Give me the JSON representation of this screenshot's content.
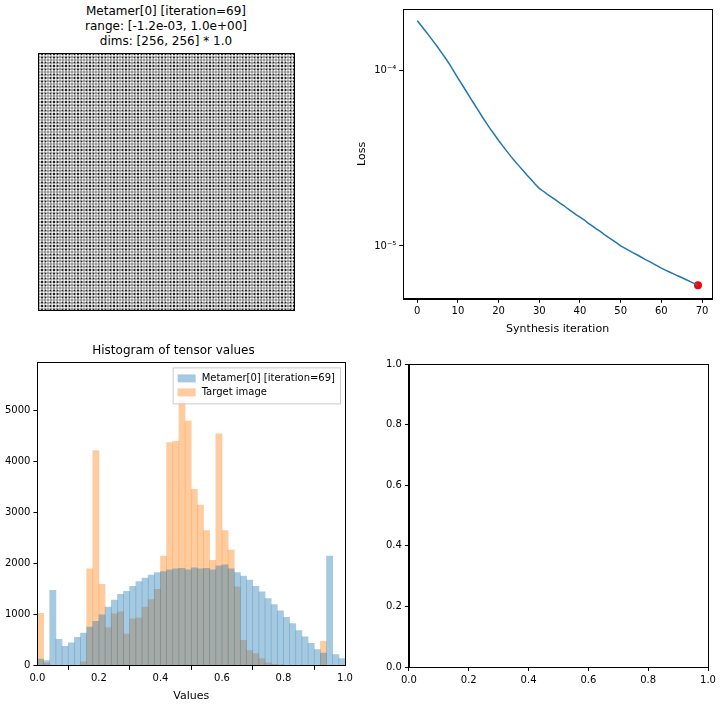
{
  "chart_data": [
    {
      "type": "image",
      "title": [
        "Metamer[0] [iteration=69]",
        "range: [-1.2e-03, 1.0e+00]",
        "dims: [256, 256] * 1.0"
      ],
      "tick_labels": false
    },
    {
      "type": "line",
      "x_label": "Synthesis iteration",
      "y_label": "Loss",
      "log": "y",
      "grid": false,
      "xlim": [
        -3.45,
        72.45
      ],
      "xticks": [
        0,
        10,
        20,
        30,
        40,
        50,
        60,
        70
      ],
      "ylim": [
        5e-06,
        0.000224
      ],
      "yticks": [
        {
          "value": 0.0001,
          "label": "10⁻⁴"
        },
        {
          "value": 1e-05,
          "label": "10⁻⁵"
        }
      ],
      "series": [
        {
          "color": "#1f77b4",
          "line_style": "solid",
          "marker": "none",
          "x": [
            0,
            1,
            2,
            3,
            4,
            5,
            6,
            7,
            8,
            9,
            10,
            11,
            12,
            13,
            14,
            15,
            16,
            17,
            18,
            19,
            20,
            21,
            22,
            23,
            24,
            25,
            26,
            27,
            28,
            29,
            30,
            31,
            32,
            33,
            34,
            35,
            36,
            37,
            38,
            39,
            40,
            41,
            42,
            43,
            44,
            45,
            46,
            47,
            48,
            49,
            50,
            51,
            52,
            53,
            54,
            55,
            56,
            57,
            58,
            59,
            60,
            61,
            62,
            63,
            64,
            65,
            66,
            67,
            68,
            69
          ],
          "values": [
            0.000192,
            0.00018,
            0.000168,
            0.000157,
            0.000146,
            0.000136,
            0.000126,
            0.000117,
            0.000108,
            9.89e-05,
            9.04e-05,
            8.32e-05,
            7.64e-05,
            7.01e-05,
            6.44e-05,
            5.92e-05,
            5.43e-05,
            5.01e-05,
            4.63e-05,
            4.3e-05,
            3.99e-05,
            3.72e-05,
            3.47e-05,
            3.24e-05,
            3.04e-05,
            2.86e-05,
            2.69e-05,
            2.53e-05,
            2.39e-05,
            2.25e-05,
            2.13e-05,
            2.05e-05,
            1.97e-05,
            1.9e-05,
            1.83e-05,
            1.76e-05,
            1.7e-05,
            1.63e-05,
            1.57e-05,
            1.51e-05,
            1.46e-05,
            1.41e-05,
            1.35e-05,
            1.3e-05,
            1.25e-05,
            1.21e-05,
            1.16e-05,
            1.12e-05,
            1.08e-05,
            1.04e-05,
            1e-05,
            9.71e-06,
            9.44e-06,
            9.16e-06,
            8.91e-06,
            8.65e-06,
            8.39e-06,
            8.17e-06,
            7.93e-06,
            7.71e-06,
            7.48e-06,
            7.29e-06,
            7.11e-06,
            6.93e-06,
            6.76e-06,
            6.61e-06,
            6.44e-06,
            6.28e-06,
            6.12e-06,
            5.97e-06
          ]
        },
        {
          "type": "scatter",
          "color": "#ff0000",
          "marker": "circle",
          "x": [
            69
          ],
          "values": [
            5.97e-06
          ]
        }
      ]
    },
    {
      "type": "histogram",
      "title": "Histogram of tensor values",
      "x_label": "Values",
      "grid": false,
      "legend": "upper right",
      "xlim": [
        0,
        1
      ],
      "xticks": [
        {
          "value": 0,
          "label": "0.0"
        },
        0.2,
        0.4,
        0.6,
        0.8,
        {
          "value": 1,
          "label": "1.0"
        }
      ],
      "ylim": [
        0,
        5950
      ],
      "yticks": [
        0,
        1000,
        2000,
        3000,
        4000,
        5000
      ],
      "bins": [
        0,
        0.02,
        0.04,
        0.06,
        0.08,
        0.1,
        0.12,
        0.14,
        0.16,
        0.18,
        0.2,
        0.22,
        0.24,
        0.26,
        0.28,
        0.3,
        0.32,
        0.34,
        0.36,
        0.38,
        0.4,
        0.42,
        0.44,
        0.46,
        0.48,
        0.5,
        0.52,
        0.54,
        0.56,
        0.58,
        0.6,
        0.62,
        0.64,
        0.66,
        0.68,
        0.7,
        0.72,
        0.74,
        0.76,
        0.78,
        0.8,
        0.82,
        0.84,
        0.86,
        0.88,
        0.9,
        0.92,
        0.94,
        0.96,
        0.98,
        1
      ],
      "series": [
        {
          "name": "Metamer[0] [iteration=69]",
          "color": "#1f77b4",
          "values": [
            130,
            100,
            1480,
            520,
            380,
            450,
            560,
            640,
            760,
            870,
            1000,
            1150,
            1290,
            1400,
            1460,
            1560,
            1650,
            1720,
            1780,
            1830,
            1850,
            1880,
            1900,
            1910,
            1880,
            1920,
            1900,
            1910,
            1880,
            1960,
            1980,
            1900,
            1830,
            1760,
            1680,
            1560,
            1450,
            1320,
            1200,
            1080,
            950,
            830,
            690,
            570,
            440,
            320,
            250,
            2150,
            220,
            140
          ]
        },
        {
          "name": "Target image",
          "color": "#ff7f0e",
          "values": [
            1030,
            60,
            0,
            0,
            0,
            0,
            0,
            80,
            1900,
            4220,
            1600,
            750,
            1020,
            1060,
            620,
            920,
            940,
            1150,
            1300,
            1500,
            2150,
            4380,
            4400,
            5200,
            4800,
            3460,
            3150,
            2650,
            2070,
            4550,
            2650,
            2270,
            1550,
            500,
            300,
            240,
            140,
            60,
            30,
            20,
            10,
            10,
            0,
            0,
            0,
            0,
            480,
            0,
            0,
            0
          ]
        }
      ]
    },
    {
      "type": "scatter",
      "grid": false,
      "xlim": [
        0,
        1
      ],
      "xticks": [
        {
          "value": 0,
          "label": "0.0"
        },
        0.2,
        0.4,
        0.6,
        0.8,
        {
          "value": 1,
          "label": "1.0"
        }
      ],
      "ylim": [
        0,
        1
      ],
      "yticks": [
        {
          "value": 0,
          "label": "0.0"
        },
        0.2,
        0.4,
        0.6,
        0.8,
        {
          "value": 1,
          "label": "1.0"
        }
      ],
      "series": []
    }
  ]
}
